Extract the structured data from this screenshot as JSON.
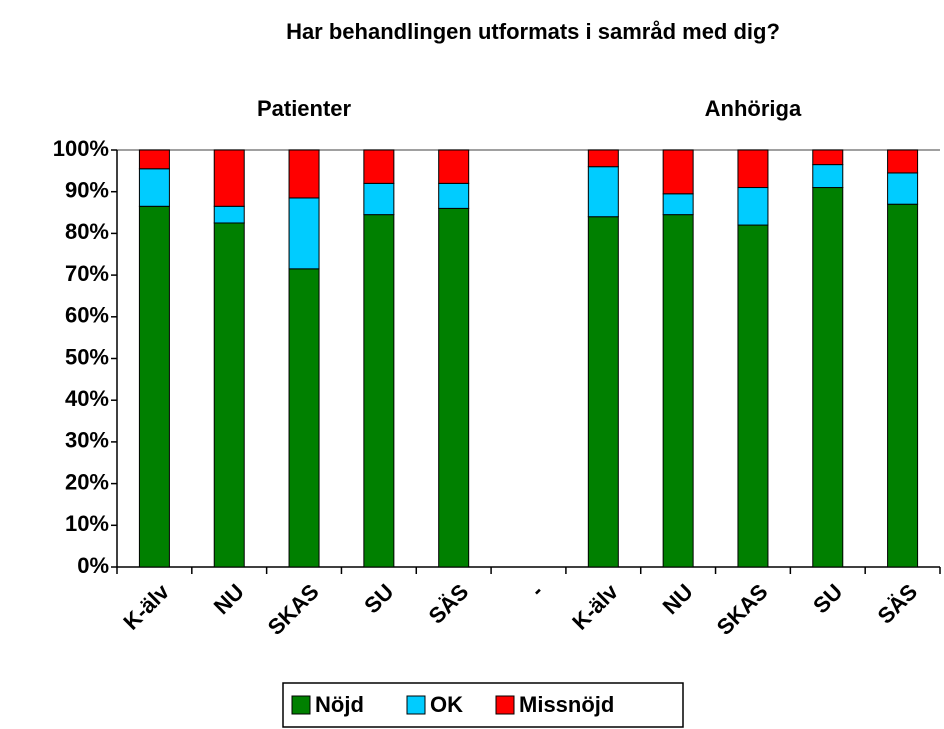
{
  "chart_data": {
    "type": "stacked_bar",
    "title": "Har behandlingen utformats i samråd med dig?",
    "annotations": [
      "Patienter",
      "Anhöriga"
    ],
    "categories": [
      "K-älv",
      "NU",
      "SKAS",
      "SU",
      "SÄS",
      "-",
      "K-älv",
      "NU",
      "SKAS",
      "SU",
      "SÄS"
    ],
    "series": [
      {
        "name": "Nöjd",
        "color": "#008000",
        "values": [
          86.5,
          82.5,
          71.5,
          84.5,
          86,
          null,
          84,
          84.5,
          82,
          91,
          87
        ]
      },
      {
        "name": "OK",
        "color": "#00ccff",
        "values": [
          9,
          4,
          17,
          7.5,
          6,
          null,
          12,
          5,
          9,
          5.5,
          7.5
        ]
      },
      {
        "name": "Missnöjd",
        "color": "#ff0000",
        "values": [
          4.5,
          13.5,
          11.5,
          8,
          8,
          null,
          4,
          10.5,
          9,
          3.5,
          5.5
        ]
      }
    ],
    "ylim": [
      0,
      100
    ],
    "yticks": [
      {
        "value": 0,
        "label": "0%"
      },
      {
        "value": 10,
        "label": "10%"
      },
      {
        "value": 20,
        "label": "20%"
      },
      {
        "value": 30,
        "label": "30%"
      },
      {
        "value": 40,
        "label": "40%"
      },
      {
        "value": 50,
        "label": "50%"
      },
      {
        "value": 60,
        "label": "60%"
      },
      {
        "value": 70,
        "label": "70%"
      },
      {
        "value": 80,
        "label": "80%"
      },
      {
        "value": 90,
        "label": "90%"
      },
      {
        "value": 100,
        "label": "100%"
      }
    ],
    "legend": "bottom"
  }
}
